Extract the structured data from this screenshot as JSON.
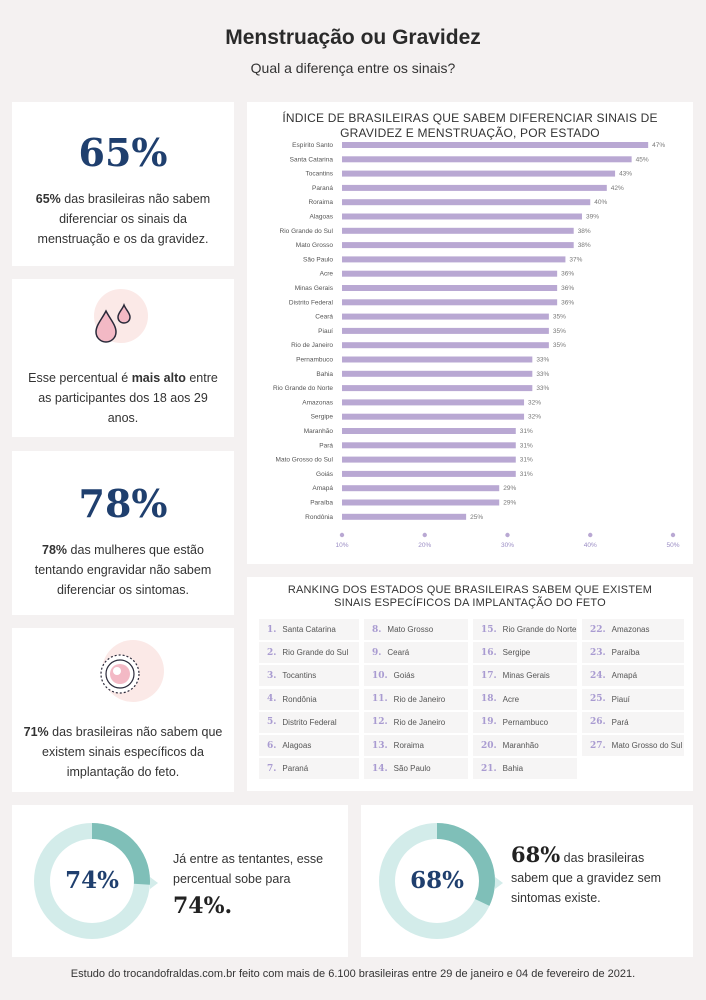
{
  "header": {
    "title": "Menstruação ou Gravidez",
    "subtitle": "Qual a diferença entre os sinais?"
  },
  "stat1": {
    "big": "65%",
    "bold": "65%",
    "text": " das brasileiras não sabem diferenciar os sinais da menstruação e os da gravidez."
  },
  "stat2": {
    "text_before": "Esse percentual ",
    "text_before_em": "é ",
    "bold": "mais alto",
    "text_after": " entre as participantes dos 18 aos 29 anos."
  },
  "stat3": {
    "big": "78%",
    "bold": "78%",
    "text": " das mulheres que estão tentando engravidar não sabem diferenciar os sintomas."
  },
  "stat4": {
    "bold": "71%",
    "text": " das brasileiras não sabem que existem sinais específicos da implantação do feto."
  },
  "donut1": {
    "label": "74%",
    "value": 74,
    "text": "Já entre as tentantes, esse percentual sobe para",
    "big": "74%."
  },
  "donut2": {
    "label": "68%",
    "value": 68,
    "big": "68%",
    "text": " das brasileiras sabem que a gravidez sem sintomas existe."
  },
  "ranking": {
    "title": "RANKING DOS ESTADOS QUE BRASILEIRAS SABEM QUE EXISTEM SINAIS ESPECÍFICOS DA IMPLANTAÇÃO DO FETO",
    "items": [
      {
        "n": "1.",
        "s": "Santa Catarina"
      },
      {
        "n": "2.",
        "s": "Rio Grande do Sul"
      },
      {
        "n": "3.",
        "s": "Tocantins"
      },
      {
        "n": "4.",
        "s": "Rondônia"
      },
      {
        "n": "5.",
        "s": "Distrito Federal"
      },
      {
        "n": "6.",
        "s": "Alagoas"
      },
      {
        "n": "7.",
        "s": "Paraná"
      },
      {
        "n": "8.",
        "s": "Mato Grosso"
      },
      {
        "n": "9.",
        "s": "Ceará"
      },
      {
        "n": "10.",
        "s": "Goiás"
      },
      {
        "n": "11.",
        "s": "Rio de Janeiro"
      },
      {
        "n": "12.",
        "s": "Rio de Janeiro"
      },
      {
        "n": "13.",
        "s": "Roraima"
      },
      {
        "n": "14.",
        "s": "São Paulo"
      },
      {
        "n": "15.",
        "s": "Rio Grande do Norte"
      },
      {
        "n": "16.",
        "s": "Sergipe"
      },
      {
        "n": "17.",
        "s": "Minas Gerais"
      },
      {
        "n": "18.",
        "s": "Acre"
      },
      {
        "n": "19.",
        "s": "Pernambuco"
      },
      {
        "n": "20.",
        "s": "Maranhão"
      },
      {
        "n": "21.",
        "s": "Bahia"
      },
      {
        "n": "22.",
        "s": "Amazonas"
      },
      {
        "n": "23.",
        "s": "Paraíba"
      },
      {
        "n": "24.",
        "s": "Amapá"
      },
      {
        "n": "25.",
        "s": "Piauí"
      },
      {
        "n": "26.",
        "s": "Pará"
      },
      {
        "n": "27.",
        "s": "Mato Grosso do Sul"
      }
    ]
  },
  "footer": "Estudo do trocandofraldas.com.br feito com mais de 6.100 brasileiras entre 29 de janeiro e 04 de fevereiro de 2021.",
  "colors": {
    "bar": "#b9a8d3",
    "navy": "#1f3f6e",
    "teal": "#7fbfb8",
    "teal_light": "#d3ecea",
    "pink_light": "#fbe9e7"
  },
  "icons": {
    "stat2": "drops-icon",
    "stat4": "egg-cell-icon"
  },
  "chart_data": {
    "type": "bar",
    "orientation": "horizontal",
    "title": "ÍNDICE DE BRASILEIRAS QUE SABEM DIFERENCIAR SINAIS DE GRAVIDEZ E MENSTRUAÇÃO, POR ESTADO",
    "categories": [
      "Espírito Santo",
      "Santa Catarina",
      "Tocantins",
      "Paraná",
      "Roraima",
      "Alagoas",
      "Rio Grande do Sul",
      "Mato Grosso",
      "São Paulo",
      "Acre",
      "Minas Gerais",
      "Distrito Federal",
      "Ceará",
      "Piauí",
      "Rio de Janeiro",
      "Pernambuco",
      "Bahia",
      "Rio Grande do Norte",
      "Amazonas",
      "Sergipe",
      "Maranhão",
      "Pará",
      "Mato Grosso do Sul",
      "Goiás",
      "Amapá",
      "Paraíba",
      "Rondônia"
    ],
    "values": [
      47,
      45,
      43,
      42,
      40,
      39,
      38,
      38,
      37,
      36,
      36,
      36,
      35,
      35,
      35,
      33,
      33,
      33,
      32,
      32,
      31,
      31,
      31,
      31,
      29,
      29,
      25
    ],
    "value_labels": [
      "47%",
      "45%",
      "43%",
      "42%",
      "40%",
      "39%",
      "38%",
      "38%",
      "37%",
      "36%",
      "36%",
      "36%",
      "35%",
      "35%",
      "35%",
      "33%",
      "33%",
      "33%",
      "32%",
      "32%",
      "31%",
      "31%",
      "31%",
      "31%",
      "29%",
      "29%",
      "25%"
    ],
    "xticks": [
      "10%",
      "20%",
      "30%",
      "40%",
      "50%"
    ],
    "xlim": [
      10,
      50
    ]
  }
}
